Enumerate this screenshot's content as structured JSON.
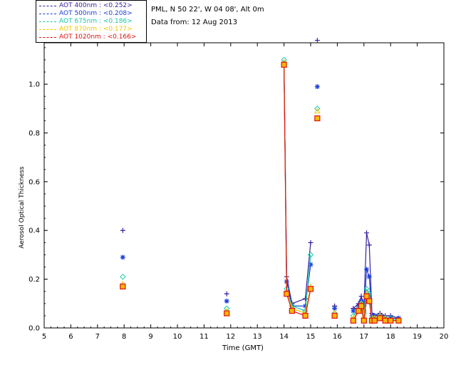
{
  "info": {
    "site": "PML, N 50 22', W 04 08', Alt 0m",
    "date": "Data from: 12 Aug 2013"
  },
  "legend": [
    {
      "label": "AOT  400nm : <0.252>",
      "color": "#3a1f9e"
    },
    {
      "label": "AOT  500nm : <0.208>",
      "color": "#1a3fd8"
    },
    {
      "label": "AOT  675nm : <0.186>",
      "color": "#17c9a8"
    },
    {
      "label": "AOT  870nm : <0.177>",
      "color": "#f0c800"
    },
    {
      "label": "AOT 1020nm : <0.166>",
      "color": "#e01010"
    }
  ],
  "chart_data": {
    "type": "scatter",
    "xlabel": "Time (GMT)",
    "ylabel": "Aerosol Optical Thickness",
    "xlim": [
      5,
      20
    ],
    "ylim": [
      0,
      1.17
    ],
    "xticks": [
      5,
      6,
      7,
      8,
      9,
      10,
      11,
      12,
      13,
      14,
      15,
      16,
      17,
      18,
      19,
      20
    ],
    "yticks": [
      "0.0",
      "0.2",
      "0.4",
      "0.6",
      "0.8",
      "1.0"
    ],
    "grid": false,
    "legend_position": "top-left",
    "series": [
      {
        "name": "AOT  400nm : <0.252>",
        "color": "#3a1f9e",
        "marker": "plus",
        "x": [
          7.95,
          11.85,
          14.0,
          14.1,
          14.3,
          14.8,
          15.0,
          15.25,
          15.9,
          16.6,
          16.8,
          16.9,
          17.0,
          17.1,
          17.2,
          17.3,
          17.4,
          17.6,
          17.8,
          18.0,
          18.3
        ],
        "y": [
          0.4,
          0.14,
          1.08,
          0.21,
          0.1,
          0.12,
          0.35,
          1.18,
          0.09,
          0.08,
          0.1,
          0.13,
          0.09,
          0.39,
          0.34,
          0.06,
          0.05,
          0.06,
          0.05,
          0.05,
          0.04
        ]
      },
      {
        "name": "AOT  500nm : <0.208>",
        "color": "#1a3fd8",
        "marker": "star",
        "x": [
          7.95,
          11.85,
          14.0,
          14.1,
          14.3,
          14.8,
          15.0,
          15.25,
          15.9,
          16.6,
          16.8,
          16.9,
          17.0,
          17.1,
          17.2,
          17.3,
          17.4,
          17.6,
          17.8,
          18.0,
          18.3
        ],
        "y": [
          0.29,
          0.11,
          1.09,
          0.19,
          0.09,
          0.09,
          0.26,
          0.99,
          0.08,
          0.07,
          0.09,
          0.11,
          0.07,
          0.24,
          0.21,
          0.05,
          0.05,
          0.05,
          0.04,
          0.04,
          0.04
        ]
      },
      {
        "name": "AOT  675nm : <0.186>",
        "color": "#17c9a8",
        "marker": "diamond",
        "x": [
          7.95,
          11.85,
          14.0,
          14.1,
          14.3,
          14.8,
          15.0,
          15.25,
          15.9,
          16.6,
          16.8,
          16.9,
          17.0,
          17.1,
          17.2,
          17.3,
          17.4,
          17.6,
          17.8,
          18.0,
          18.3
        ],
        "y": [
          0.21,
          0.08,
          1.1,
          0.16,
          0.09,
          0.07,
          0.3,
          0.9,
          0.06,
          0.05,
          0.08,
          0.1,
          0.06,
          0.16,
          0.14,
          0.04,
          0.04,
          0.05,
          0.04,
          0.04,
          0.03
        ]
      },
      {
        "name": "AOT  870nm : <0.177>",
        "color": "#f0c800",
        "marker": "triangle",
        "x": [
          7.95,
          11.85,
          14.0,
          14.1,
          14.3,
          14.8,
          15.0,
          15.25,
          15.9,
          16.6,
          16.8,
          16.9,
          17.0,
          17.1,
          17.2,
          17.3,
          17.4,
          17.6,
          17.8,
          18.0,
          18.3
        ],
        "y": [
          0.18,
          0.07,
          1.09,
          0.15,
          0.08,
          0.06,
          0.17,
          0.89,
          0.06,
          0.04,
          0.07,
          0.1,
          0.05,
          0.14,
          0.12,
          0.04,
          0.04,
          0.05,
          0.04,
          0.03,
          0.03
        ]
      },
      {
        "name": "AOT 1020nm : <0.166>",
        "color": "#e01010",
        "marker": "square",
        "x": [
          7.95,
          11.85,
          14.0,
          14.1,
          14.3,
          14.8,
          15.0,
          15.25,
          15.9,
          16.6,
          16.8,
          16.9,
          17.0,
          17.1,
          17.2,
          17.3,
          17.4,
          17.6,
          17.8,
          18.0,
          18.3
        ],
        "y": [
          0.17,
          0.06,
          1.08,
          0.14,
          0.07,
          0.05,
          0.16,
          0.86,
          0.05,
          0.03,
          0.07,
          0.09,
          0.03,
          0.13,
          0.11,
          0.03,
          0.03,
          0.04,
          0.03,
          0.03,
          0.03
        ]
      }
    ]
  }
}
